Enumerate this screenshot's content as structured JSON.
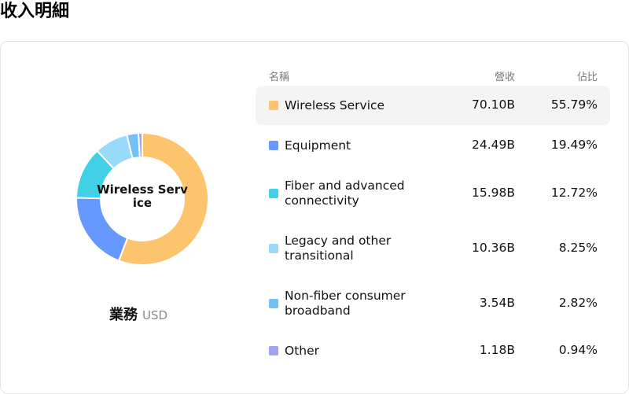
{
  "page_title": "收入明細",
  "center_label": "Wireless Service",
  "caption": {
    "main": "業務",
    "unit": "USD"
  },
  "table": {
    "headers": {
      "name": "名稱",
      "revenue": "營收",
      "share": "佔比"
    },
    "rows": [
      {
        "name": "Wireless Service",
        "revenue": "70.10B",
        "share": "55.79%"
      },
      {
        "name": "Equipment",
        "revenue": "24.49B",
        "share": "19.49%"
      },
      {
        "name": "Fiber and advanced connectivity",
        "revenue": "15.98B",
        "share": "12.72%"
      },
      {
        "name": "Legacy and other transitional",
        "revenue": "10.36B",
        "share": "8.25%"
      },
      {
        "name": "Non-fiber consumer broadband",
        "revenue": "3.54B",
        "share": "2.82%"
      },
      {
        "name": "Other",
        "revenue": "1.18B",
        "share": "0.94%"
      }
    ]
  },
  "chart_data": {
    "type": "pie",
    "categories": [
      "Wireless Service",
      "Equipment",
      "Fiber and advanced connectivity",
      "Legacy and other transitional",
      "Non-fiber consumer broadband",
      "Other"
    ],
    "values": [
      70.1,
      24.49,
      15.98,
      10.36,
      3.54,
      1.18
    ],
    "percentages": [
      55.79,
      19.49,
      12.72,
      8.25,
      2.82,
      0.94
    ],
    "colors": [
      "#fdc46e",
      "#6699ff",
      "#41d0e6",
      "#98daf9",
      "#72c1f5",
      "#a0a3f2"
    ],
    "unit": "USD"
  }
}
